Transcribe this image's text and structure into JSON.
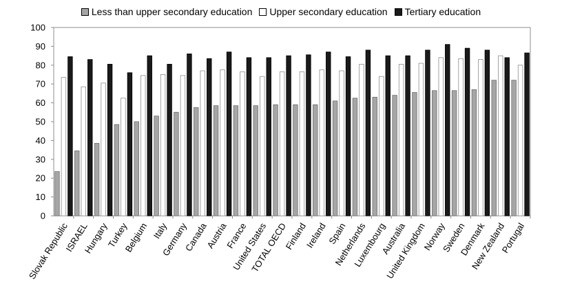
{
  "chart_data": {
    "type": "bar",
    "title": "",
    "xlabel": "",
    "ylabel": "",
    "ylim": [
      0,
      100
    ],
    "yticks": [
      0,
      10,
      20,
      30,
      40,
      50,
      60,
      70,
      80,
      90,
      100
    ],
    "grid": false,
    "legend_position": "top-center",
    "categories": [
      "Slovak Republic",
      "ISRAEL",
      "Hungary",
      "Turkey",
      "Belgium",
      "Italy",
      "Germany",
      "Canada",
      "Austria",
      "France",
      "United States",
      "TOTAL OECD",
      "Finland",
      "Ireland",
      "Spain",
      "Netherlands",
      "Luxembourg",
      "Australia",
      "United Kingdom",
      "Norway",
      "Sweden",
      "Denmark",
      "New Zealand",
      "Portugal"
    ],
    "series": [
      {
        "name": "Less than upper secondary education",
        "color": "#a6a6a6",
        "values": [
          23.5,
          34.5,
          38.5,
          48.5,
          50,
          53,
          55,
          57.5,
          58.5,
          58.5,
          58.5,
          59,
          59,
          59,
          61,
          62.5,
          63,
          64,
          65.5,
          66.5,
          66.5,
          67,
          72,
          72
        ]
      },
      {
        "name": "Upper secondary education",
        "color": "#ffffff",
        "values": [
          73.5,
          68.5,
          70.5,
          62.5,
          74.5,
          75,
          74.5,
          77,
          77.5,
          76.5,
          74,
          76.5,
          76.5,
          77.5,
          77,
          80.5,
          74,
          80.5,
          81,
          84,
          83.5,
          83,
          85,
          80
        ]
      },
      {
        "name": "Tertiary education",
        "color": "#1a1a1a",
        "values": [
          84.5,
          83,
          80.5,
          76,
          85,
          80.5,
          86,
          83.5,
          87,
          84,
          84,
          85,
          85.5,
          87,
          84.5,
          88,
          85,
          85,
          88,
          91,
          89,
          88,
          84,
          86.5
        ]
      }
    ]
  }
}
